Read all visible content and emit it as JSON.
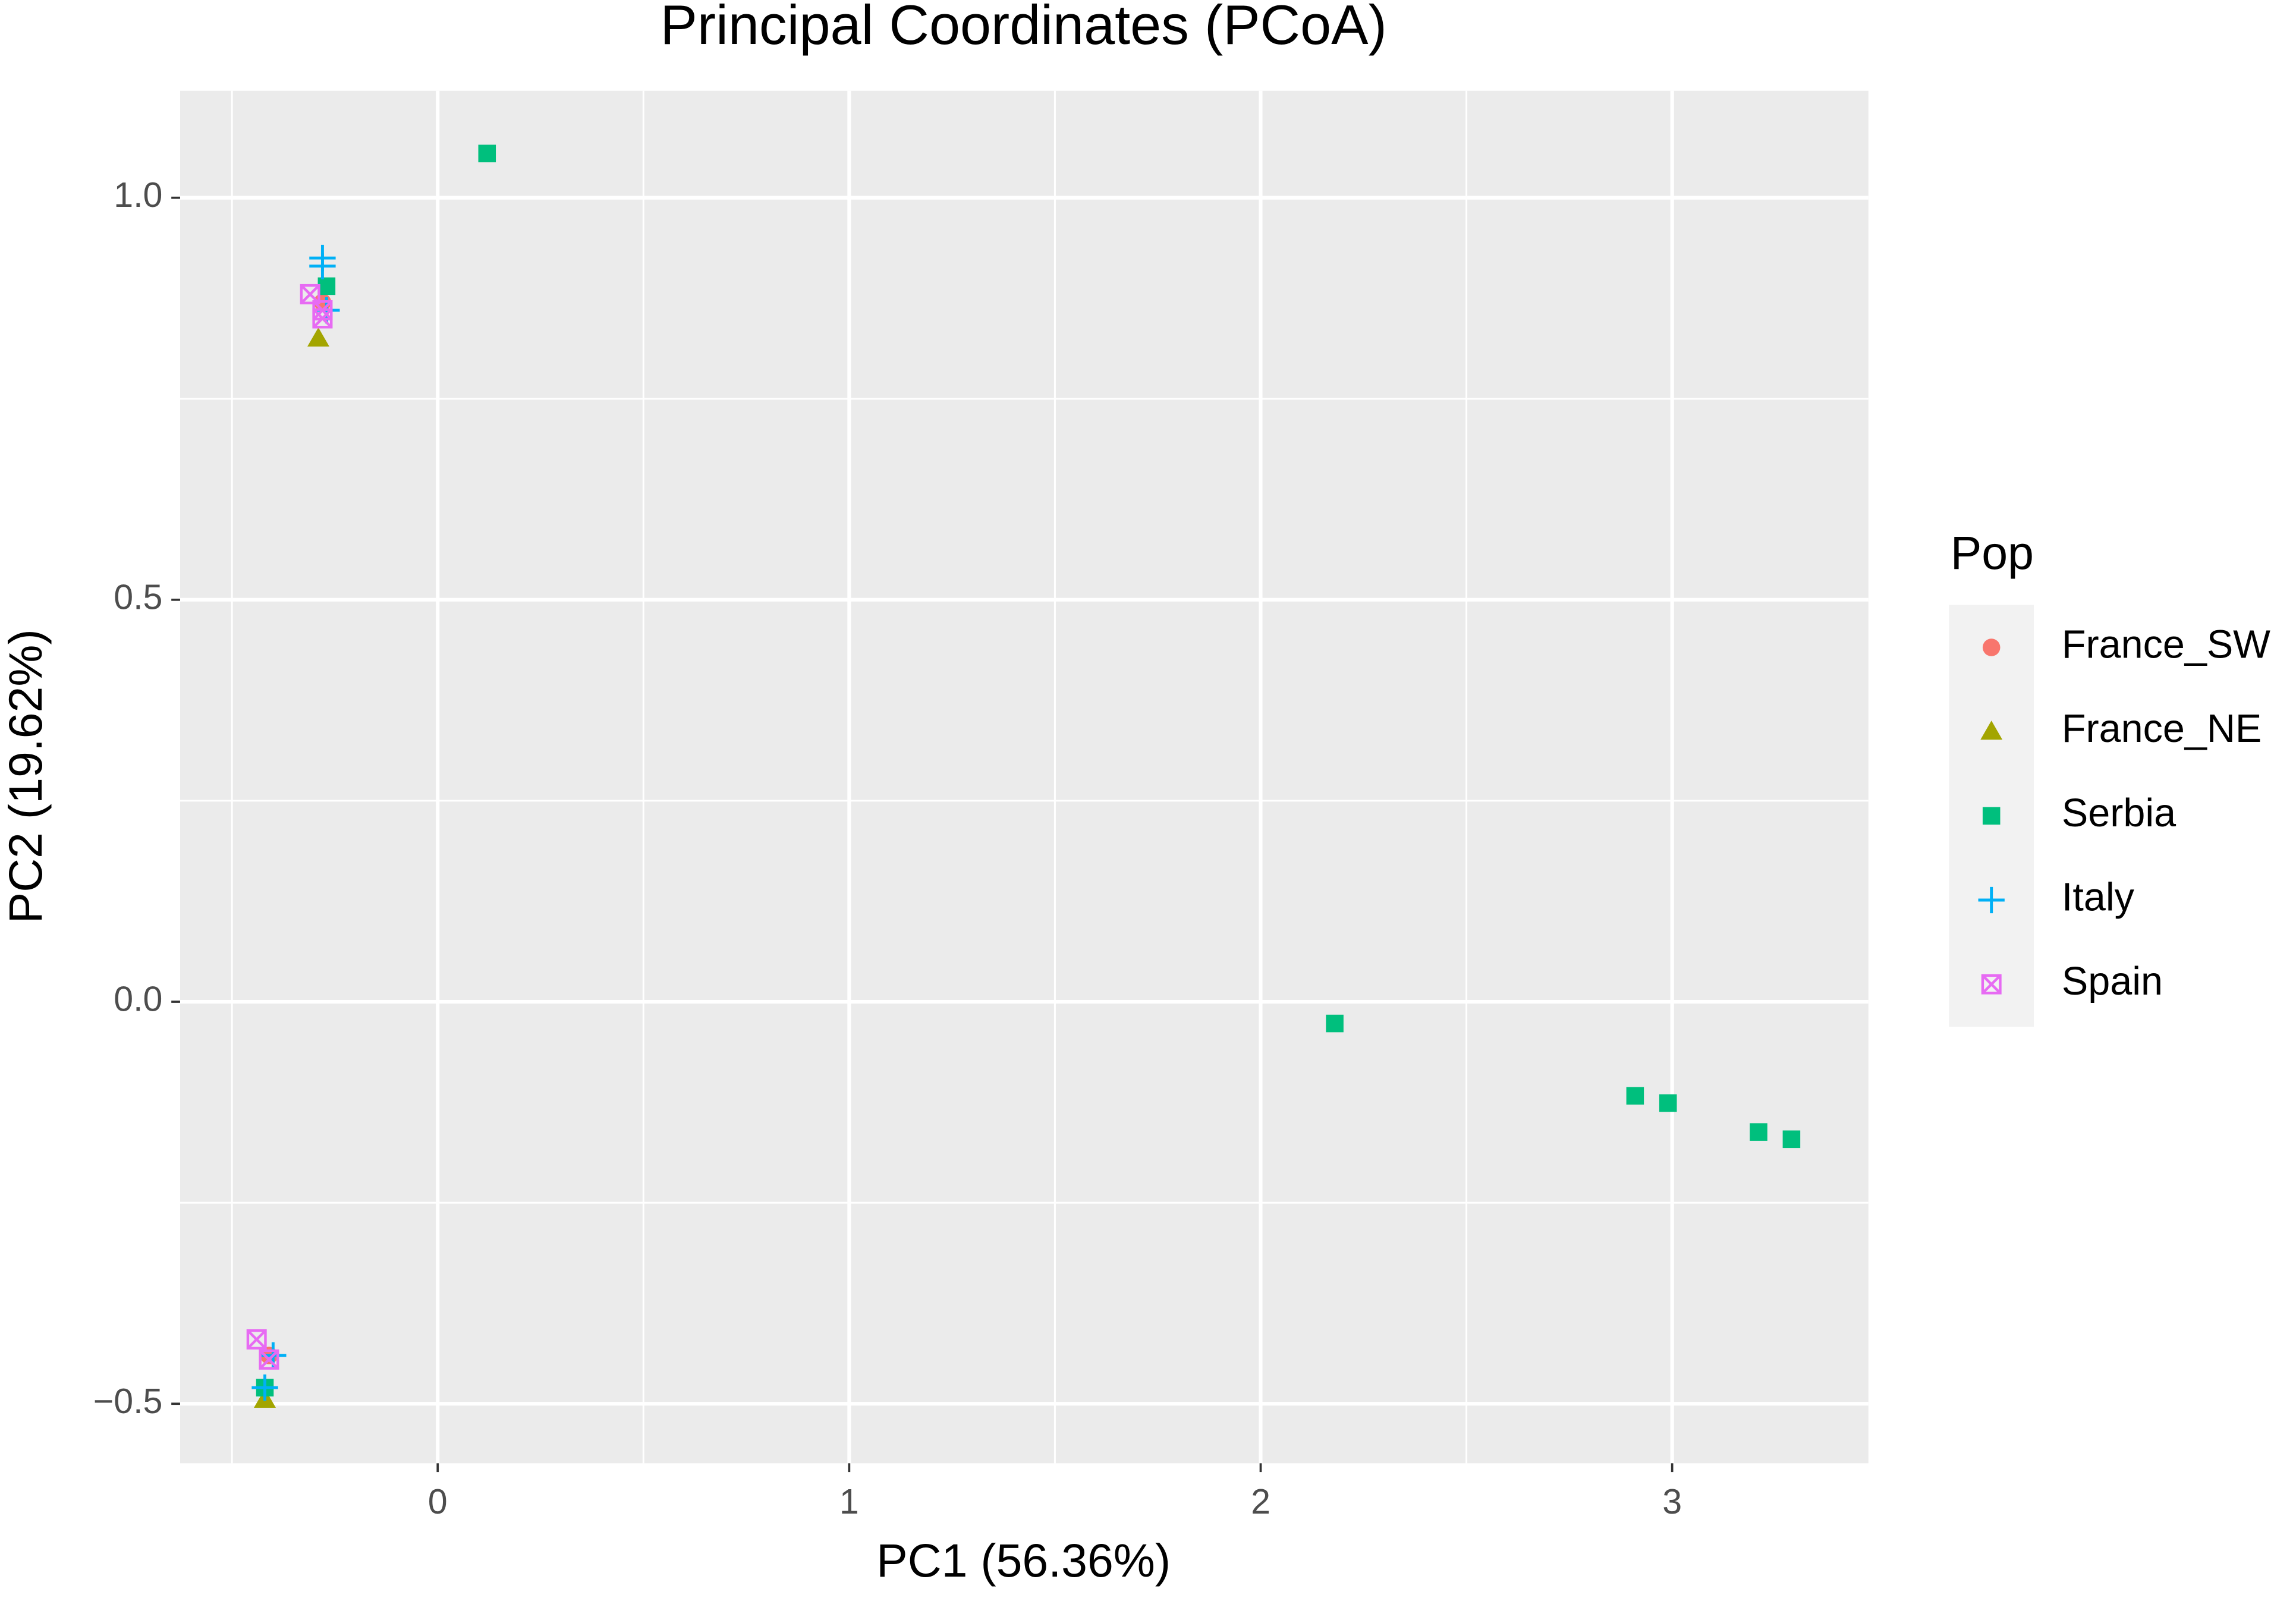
{
  "chart_data": {
    "type": "scatter",
    "title": "Principal Coordinates (PCoA)",
    "x_label": "PC1 (56.36%)",
    "y_label": "PC2 (19.62%)",
    "legend_title": "Pop",
    "legend_position": "right",
    "grid": true,
    "xlim": [
      -0.626,
      3.477
    ],
    "ylim": [
      -0.574,
      1.133
    ],
    "xticks": [
      0,
      1,
      2,
      3
    ],
    "yticks": [
      {
        "value": -0.5,
        "label": "−0.5"
      },
      {
        "value": 0,
        "label": "0.0"
      },
      0.5,
      {
        "value": 1,
        "label": "1.0"
      }
    ],
    "x_minor_grid": [
      -0.5,
      0.5,
      1.5,
      2.5
    ],
    "y_minor_grid": [
      -0.25,
      0.25,
      0.75
    ],
    "series": [
      {
        "name": "France_SW",
        "color": "#F8766D",
        "marker": "circle",
        "x": [
          -0.41,
          -0.28
        ],
        "values": [
          -0.44,
          0.87
        ]
      },
      {
        "name": "France_NE",
        "color": "#A3A500",
        "marker": "triangle",
        "x": [
          -0.29,
          -0.42
        ],
        "values": [
          0.825,
          -0.495
        ]
      },
      {
        "name": "Serbia",
        "color": "#00BF7D",
        "marker": "square",
        "x": [
          0.12,
          2.18,
          2.91,
          2.99,
          3.21,
          3.29,
          -0.27,
          -0.42
        ],
        "values": [
          1.055,
          -0.027,
          -0.117,
          -0.126,
          -0.162,
          -0.171,
          0.89,
          -0.48
        ]
      },
      {
        "name": "Italy",
        "color": "#00B0F6",
        "marker": "plus",
        "x": [
          -0.28,
          -0.28,
          -0.27,
          -0.4,
          -0.42
        ],
        "values": [
          0.925,
          0.915,
          0.86,
          -0.44,
          -0.48
        ]
      },
      {
        "name": "Spain",
        "color": "#E76BF3",
        "marker": "boxcross",
        "x": [
          -0.31,
          -0.28,
          -0.28,
          -0.44,
          -0.41
        ],
        "values": [
          0.88,
          0.86,
          0.85,
          -0.42,
          -0.445
        ]
      }
    ]
  }
}
